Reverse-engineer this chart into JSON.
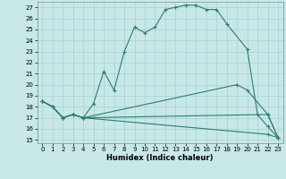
{
  "xlabel": "Humidex (Indice chaleur)",
  "bg_color": "#c8e8e8",
  "line_color": "#2e7d6e",
  "grid_color": "#a8d0d0",
  "xlim": [
    -0.5,
    23.5
  ],
  "ylim": [
    14.7,
    27.5
  ],
  "yticks": [
    15,
    16,
    17,
    18,
    19,
    20,
    21,
    22,
    23,
    24,
    25,
    26,
    27
  ],
  "xticks": [
    0,
    1,
    2,
    3,
    4,
    5,
    6,
    7,
    8,
    9,
    10,
    11,
    12,
    13,
    14,
    15,
    16,
    17,
    18,
    19,
    20,
    21,
    22,
    23
  ],
  "line1_x": [
    0,
    1,
    2,
    3,
    4,
    5,
    6,
    7,
    8,
    9,
    10,
    11,
    12,
    13,
    14,
    15,
    16,
    17,
    18,
    20,
    21,
    22,
    23
  ],
  "line1_y": [
    18.5,
    18.0,
    17.0,
    17.3,
    17.0,
    18.3,
    21.2,
    19.5,
    23.0,
    25.2,
    24.7,
    25.2,
    26.8,
    27.0,
    27.2,
    27.2,
    26.8,
    26.8,
    25.5,
    23.2,
    17.3,
    16.2,
    15.2
  ],
  "line2_x": [
    0,
    1,
    2,
    3,
    4,
    22,
    23
  ],
  "line2_y": [
    18.5,
    18.0,
    17.0,
    17.3,
    17.0,
    17.3,
    15.2
  ],
  "line3_x": [
    0,
    1,
    2,
    3,
    4,
    19,
    20,
    22,
    23
  ],
  "line3_y": [
    18.5,
    18.0,
    17.0,
    17.3,
    17.0,
    20.0,
    19.5,
    17.3,
    15.2
  ],
  "line4_x": [
    0,
    1,
    2,
    3,
    4,
    22,
    23
  ],
  "line4_y": [
    18.5,
    18.0,
    17.0,
    17.3,
    17.0,
    15.5,
    15.2
  ]
}
